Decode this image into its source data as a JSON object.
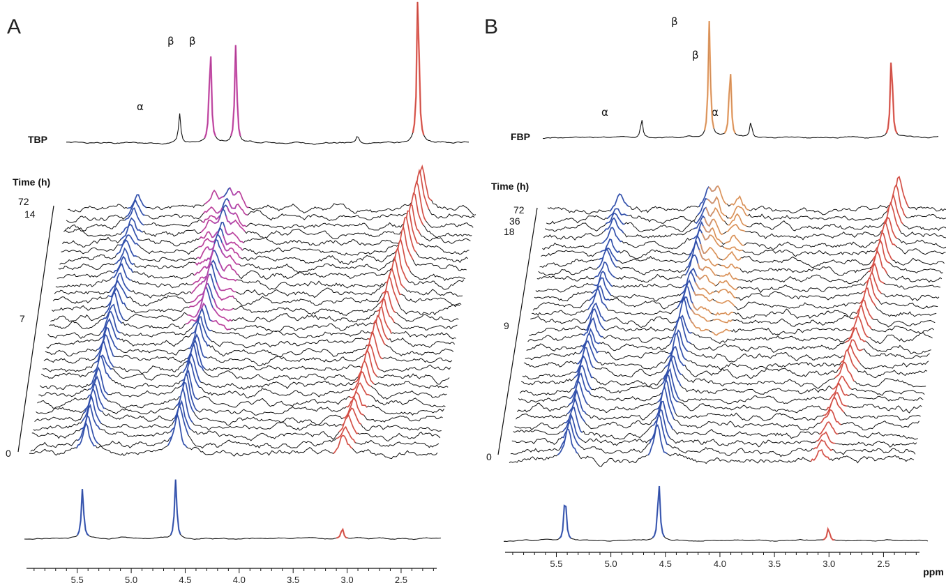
{
  "chart_data": [
    {
      "type": "line",
      "panel_label": "A",
      "compound_label": "TBP",
      "time_axis_label": "Time (h)",
      "time_ticks": [
        "72",
        "14",
        "7",
        "0"
      ],
      "xlabel": "ppm",
      "x_ticks": [
        "5.5",
        "5.0",
        "4.5",
        "4.0",
        "3.5",
        "3.0",
        "2.5"
      ],
      "xlim": [
        5.97,
        2.17
      ],
      "x_reversed": true,
      "peak_annotations": [
        "α",
        "β",
        "β"
      ],
      "reference_spectrum_peaks": [
        {
          "ppm": 4.9,
          "label": "α",
          "height": 0.3,
          "color": "#111111"
        },
        {
          "ppm": 4.61,
          "label": "β",
          "height": 1.0,
          "color": "#cc44aa"
        },
        {
          "ppm": 4.37,
          "label": "β",
          "height": 1.0,
          "color": "#cc44aa"
        },
        {
          "ppm": 3.22,
          "label": "",
          "height": 0.08,
          "color": "#111111"
        },
        {
          "ppm": 2.65,
          "label": "",
          "height": 1.6,
          "color": "#e8554a"
        }
      ],
      "bottom_spectrum_peaks": [
        {
          "ppm": 5.44,
          "height": 0.85,
          "color": "#3355bb"
        },
        {
          "ppm": 4.59,
          "height": 1.0,
          "color": "#3355bb"
        },
        {
          "ppm": 3.07,
          "height": 0.18,
          "color": "#e8554a"
        }
      ],
      "stack_traces": 30,
      "colors": {
        "anomer_peaks": "#3355bb",
        "beta_peaks": "#cc44aa",
        "product_peak": "#e8554a",
        "noise": "#111111"
      }
    },
    {
      "type": "line",
      "panel_label": "B",
      "compound_label": "FBP",
      "time_axis_label": "Time (h)",
      "time_ticks": [
        "72",
        "36",
        "18",
        "9",
        "0"
      ],
      "xlabel": "ppm",
      "x_ticks": [
        "5.5",
        "5.0",
        "4.5",
        "4.0",
        "3.5",
        "3.0",
        "2.5"
      ],
      "xlim": [
        5.97,
        2.17
      ],
      "x_reversed": true,
      "peak_annotations": [
        "α",
        "β",
        "β",
        "α"
      ],
      "reference_spectrum_peaks": [
        {
          "ppm": 5.02,
          "label": "α",
          "height": 0.25,
          "color": "#111111"
        },
        {
          "ppm": 4.37,
          "label": "β",
          "height": 1.6,
          "color": "#f0a060"
        },
        {
          "ppm": 4.17,
          "label": "β",
          "height": 1.0,
          "color": "#f0a060"
        },
        {
          "ppm": 3.97,
          "label": "α",
          "height": 0.22,
          "color": "#111111"
        },
        {
          "ppm": 2.62,
          "label": "",
          "height": 1.2,
          "color": "#e8554a"
        }
      ],
      "bottom_spectrum_peaks": [
        {
          "ppm": 5.42,
          "height": 0.8,
          "color": "#3355bb"
        },
        {
          "ppm": 4.58,
          "height": 1.0,
          "color": "#3355bb"
        },
        {
          "ppm": 3.06,
          "height": 0.22,
          "color": "#e8554a"
        }
      ],
      "stack_traces": 30,
      "colors": {
        "anomer_peaks": "#3355bb",
        "beta_peaks": "#cc44aa",
        "intermediate_peaks": "#f0a060",
        "product_peak": "#e8554a",
        "noise": "#111111"
      }
    }
  ]
}
